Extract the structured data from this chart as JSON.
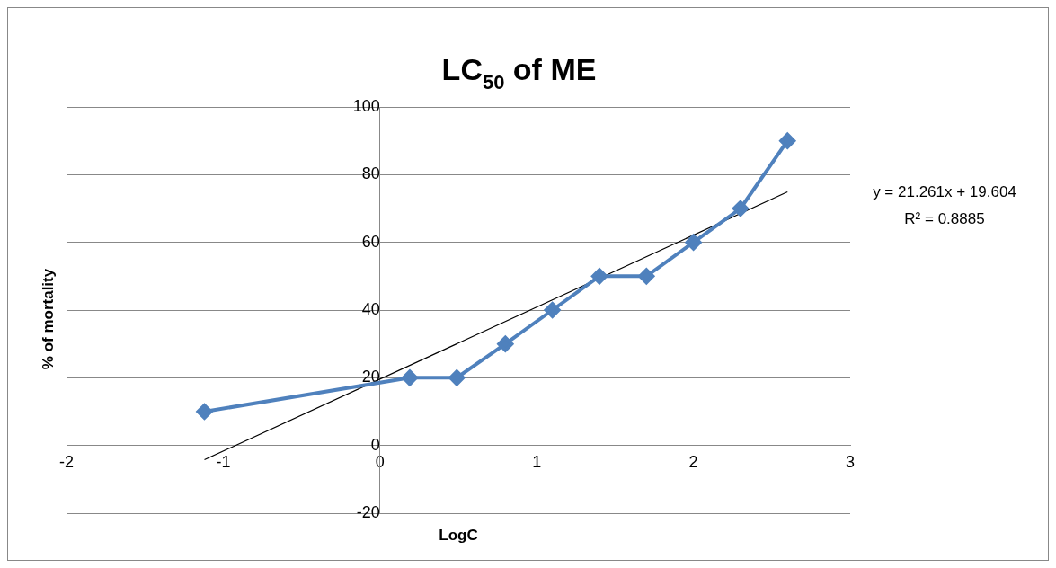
{
  "chart_data": {
    "type": "line",
    "title": "LC$_{50}$ of ME",
    "xlabel": "LogC",
    "ylabel": "% of mortality",
    "x": [
      -1.12,
      0.19,
      0.49,
      0.8,
      1.1,
      1.4,
      1.7,
      2,
      2.3,
      2.6
    ],
    "series": [
      {
        "color": "#4f81bd",
        "values": [
          10,
          20,
          20,
          30,
          40,
          50,
          50,
          60,
          70,
          90
        ],
        "marker": "diamond"
      },
      {
        "type": "line",
        "color": "#000000",
        "x": [
          -1.12,
          2.6
        ],
        "values": [
          -4.2,
          74.9
        ],
        "marker": "none"
      }
    ],
    "annotations": [
      "y = 21.261x + 19.604",
      "R² = 0.8885"
    ],
    "xlim": [
      -2,
      3
    ],
    "xticks": [
      -2,
      -1,
      0,
      1,
      2,
      3
    ],
    "ylim": [
      -20,
      100
    ],
    "yticks": [
      -20,
      0,
      20,
      40,
      60,
      80,
      100
    ],
    "grid": "y",
    "legend": false
  }
}
